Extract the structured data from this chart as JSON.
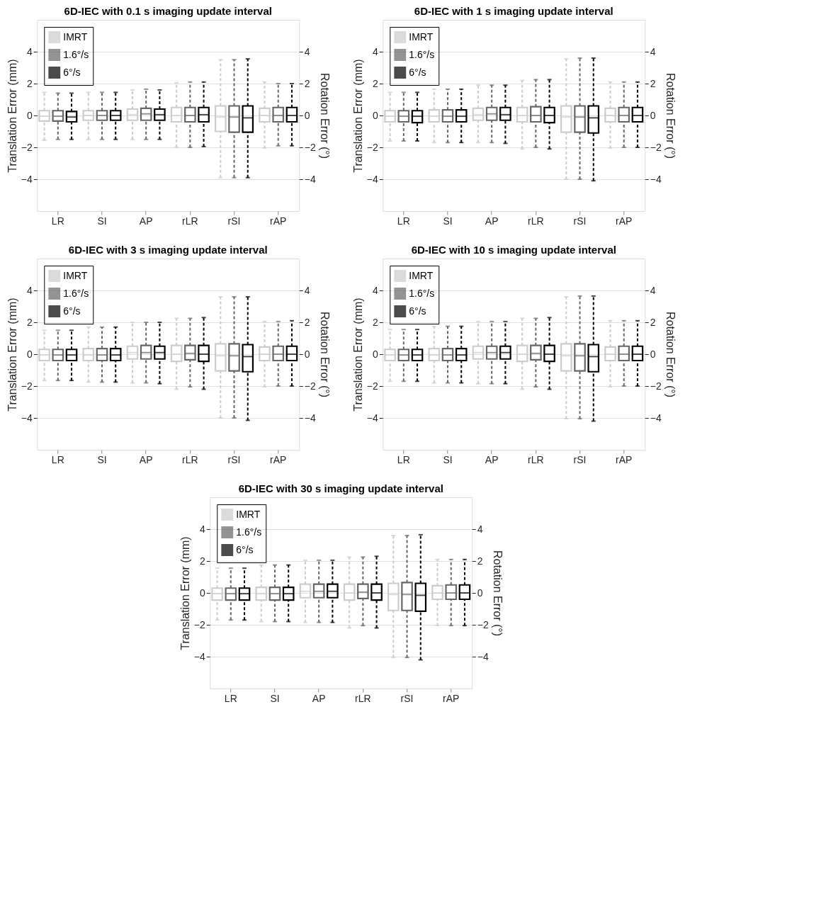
{
  "chart_data": [
    {
      "type": "box",
      "title": "6D-IEC with 0.1 s imaging update interval",
      "categories": [
        "LR",
        "SI",
        "AP",
        "rLR",
        "rSI",
        "rAP"
      ],
      "ylabel": "Translation Error (mm)",
      "y2label": "Rotation Error (°)",
      "ylim": [
        -6,
        6
      ],
      "yticks": [
        -4,
        -2,
        0,
        2,
        4
      ],
      "y2lim": [
        -6,
        6
      ],
      "y2ticks": [
        -4,
        -2,
        0,
        2,
        4
      ],
      "grid": "y",
      "legend": "top left",
      "line_style": "dashed",
      "series": [
        {
          "name": "IMRT",
          "color": "#cccccc",
          "boxes": [
            {
              "low": -1.55,
              "q1": -0.35,
              "median": -0.05,
              "q3": 0.3,
              "high": 1.45
            },
            {
              "low": -1.5,
              "q1": -0.3,
              "median": 0,
              "q3": 0.3,
              "high": 1.45
            },
            {
              "low": -1.5,
              "q1": -0.3,
              "median": 0.05,
              "q3": 0.4,
              "high": 1.6
            },
            {
              "low": -2.0,
              "q1": -0.4,
              "median": 0,
              "q3": 0.5,
              "high": 2.05
            },
            {
              "low": -3.9,
              "q1": -1.0,
              "median": -0.1,
              "q3": 0.6,
              "high": 3.5
            },
            {
              "low": -2.05,
              "q1": -0.4,
              "median": 0,
              "q3": 0.45,
              "high": 2.1
            }
          ]
        },
        {
          "name": "1.6°/s",
          "color": "#666666",
          "boxes": [
            {
              "low": -1.5,
              "q1": -0.35,
              "median": -0.05,
              "q3": 0.3,
              "high": 1.4
            },
            {
              "low": -1.5,
              "q1": -0.3,
              "median": 0,
              "q3": 0.3,
              "high": 1.45
            },
            {
              "low": -1.5,
              "q1": -0.3,
              "median": 0.1,
              "q3": 0.45,
              "high": 1.65
            },
            {
              "low": -2.0,
              "q1": -0.4,
              "median": 0,
              "q3": 0.5,
              "high": 2.1
            },
            {
              "low": -3.9,
              "q1": -1.05,
              "median": -0.1,
              "q3": 0.6,
              "high": 3.5
            },
            {
              "low": -1.9,
              "q1": -0.4,
              "median": 0,
              "q3": 0.5,
              "high": 2.0
            }
          ]
        },
        {
          "name": "6°/s",
          "color": "#000000",
          "boxes": [
            {
              "low": -1.5,
              "q1": -0.4,
              "median": -0.1,
              "q3": 0.25,
              "high": 1.4
            },
            {
              "low": -1.5,
              "q1": -0.3,
              "median": 0,
              "q3": 0.3,
              "high": 1.45
            },
            {
              "low": -1.5,
              "q1": -0.3,
              "median": 0.05,
              "q3": 0.4,
              "high": 1.6
            },
            {
              "low": -1.95,
              "q1": -0.4,
              "median": 0.05,
              "q3": 0.5,
              "high": 2.1
            },
            {
              "low": -3.9,
              "q1": -1.05,
              "median": -0.15,
              "q3": 0.6,
              "high": 3.55
            },
            {
              "low": -1.9,
              "q1": -0.4,
              "median": 0,
              "q3": 0.5,
              "high": 2.0
            }
          ]
        }
      ]
    },
    {
      "type": "box",
      "title": "6D-IEC with 1 s imaging update interval",
      "categories": [
        "LR",
        "SI",
        "AP",
        "rLR",
        "rSI",
        "rAP"
      ],
      "ylabel": "Translation Error (mm)",
      "y2label": "Rotation Error (°)",
      "ylim": [
        -6,
        6
      ],
      "yticks": [
        -4,
        -2,
        0,
        2,
        4
      ],
      "y2lim": [
        -6,
        6
      ],
      "y2ticks": [
        -4,
        -2,
        0,
        2,
        4
      ],
      "grid": "y",
      "legend": "top left",
      "line_style": "dashed",
      "series": [
        {
          "name": "IMRT",
          "color": "#cccccc",
          "boxes": [
            {
              "low": -1.6,
              "q1": -0.4,
              "median": -0.05,
              "q3": 0.3,
              "high": 1.45
            },
            {
              "low": -1.7,
              "q1": -0.4,
              "median": -0.05,
              "q3": 0.35,
              "high": 1.65
            },
            {
              "low": -1.7,
              "q1": -0.3,
              "median": 0.05,
              "q3": 0.45,
              "high": 1.9
            },
            {
              "low": -2.1,
              "q1": -0.4,
              "median": 0,
              "q3": 0.5,
              "high": 2.2
            },
            {
              "low": -4.0,
              "q1": -1.05,
              "median": -0.1,
              "q3": 0.6,
              "high": 3.55
            },
            {
              "low": -2.05,
              "q1": -0.4,
              "median": 0,
              "q3": 0.45,
              "high": 2.1
            }
          ]
        },
        {
          "name": "1.6°/s",
          "color": "#666666",
          "boxes": [
            {
              "low": -1.6,
              "q1": -0.4,
              "median": -0.05,
              "q3": 0.3,
              "high": 1.45
            },
            {
              "low": -1.7,
              "q1": -0.4,
              "median": -0.05,
              "q3": 0.35,
              "high": 1.65
            },
            {
              "low": -1.7,
              "q1": -0.3,
              "median": 0.1,
              "q3": 0.5,
              "high": 1.9
            },
            {
              "low": -2.0,
              "q1": -0.4,
              "median": 0,
              "q3": 0.55,
              "high": 2.25
            },
            {
              "low": -4.0,
              "q1": -1.05,
              "median": -0.1,
              "q3": 0.6,
              "high": 3.6
            },
            {
              "low": -2.0,
              "q1": -0.4,
              "median": 0,
              "q3": 0.5,
              "high": 2.1
            }
          ]
        },
        {
          "name": "6°/s",
          "color": "#000000",
          "boxes": [
            {
              "low": -1.6,
              "q1": -0.45,
              "median": -0.05,
              "q3": 0.3,
              "high": 1.45
            },
            {
              "low": -1.7,
              "q1": -0.4,
              "median": -0.05,
              "q3": 0.35,
              "high": 1.65
            },
            {
              "low": -1.75,
              "q1": -0.3,
              "median": 0.05,
              "q3": 0.5,
              "high": 1.9
            },
            {
              "low": -2.1,
              "q1": -0.45,
              "median": 0,
              "q3": 0.5,
              "high": 2.25
            },
            {
              "low": -4.1,
              "q1": -1.1,
              "median": -0.15,
              "q3": 0.6,
              "high": 3.6
            },
            {
              "low": -2.0,
              "q1": -0.4,
              "median": 0,
              "q3": 0.5,
              "high": 2.1
            }
          ]
        }
      ]
    },
    {
      "type": "box",
      "title": "6D-IEC with 3 s imaging update interval",
      "categories": [
        "LR",
        "SI",
        "AP",
        "rLR",
        "rSI",
        "rAP"
      ],
      "ylabel": "Translation Error (mm)",
      "y2label": "Rotation Error (°)",
      "ylim": [
        -6,
        6
      ],
      "yticks": [
        -4,
        -2,
        0,
        2,
        4
      ],
      "y2lim": [
        -6,
        6
      ],
      "y2ticks": [
        -4,
        -2,
        0,
        2,
        4
      ],
      "grid": "y",
      "legend": "top left",
      "line_style": "dashed",
      "series": [
        {
          "name": "IMRT",
          "color": "#cccccc",
          "boxes": [
            {
              "low": -1.65,
              "q1": -0.4,
              "median": -0.05,
              "q3": 0.3,
              "high": 1.5
            },
            {
              "low": -1.75,
              "q1": -0.4,
              "median": -0.05,
              "q3": 0.35,
              "high": 1.7
            },
            {
              "low": -1.8,
              "q1": -0.3,
              "median": 0.1,
              "q3": 0.5,
              "high": 2.0
            },
            {
              "low": -2.2,
              "q1": -0.45,
              "median": 0,
              "q3": 0.55,
              "high": 2.25
            },
            {
              "low": -4.0,
              "q1": -1.05,
              "median": -0.1,
              "q3": 0.65,
              "high": 3.6
            },
            {
              "low": -2.05,
              "q1": -0.4,
              "median": 0,
              "q3": 0.45,
              "high": 2.05
            }
          ]
        },
        {
          "name": "1.6°/s",
          "color": "#666666",
          "boxes": [
            {
              "low": -1.65,
              "q1": -0.4,
              "median": -0.05,
              "q3": 0.3,
              "high": 1.5
            },
            {
              "low": -1.75,
              "q1": -0.4,
              "median": -0.05,
              "q3": 0.35,
              "high": 1.7
            },
            {
              "low": -1.8,
              "q1": -0.3,
              "median": 0.1,
              "q3": 0.55,
              "high": 2.0
            },
            {
              "low": -2.05,
              "q1": -0.35,
              "median": 0.05,
              "q3": 0.55,
              "high": 2.25
            },
            {
              "low": -4.0,
              "q1": -1.05,
              "median": -0.1,
              "q3": 0.65,
              "high": 3.6
            },
            {
              "low": -2.0,
              "q1": -0.4,
              "median": 0,
              "q3": 0.5,
              "high": 2.05
            }
          ]
        },
        {
          "name": "6°/s",
          "color": "#000000",
          "boxes": [
            {
              "low": -1.65,
              "q1": -0.4,
              "median": -0.05,
              "q3": 0.3,
              "high": 1.5
            },
            {
              "low": -1.75,
              "q1": -0.4,
              "median": -0.05,
              "q3": 0.35,
              "high": 1.7
            },
            {
              "low": -1.85,
              "q1": -0.3,
              "median": 0.1,
              "q3": 0.5,
              "high": 2.0
            },
            {
              "low": -2.2,
              "q1": -0.45,
              "median": 0,
              "q3": 0.55,
              "high": 2.3
            },
            {
              "low": -4.15,
              "q1": -1.1,
              "median": -0.15,
              "q3": 0.6,
              "high": 3.6
            },
            {
              "low": -2.0,
              "q1": -0.4,
              "median": 0,
              "q3": 0.5,
              "high": 2.1
            }
          ]
        }
      ]
    },
    {
      "type": "box",
      "title": "6D-IEC with 10 s imaging update interval",
      "categories": [
        "LR",
        "SI",
        "AP",
        "rLR",
        "rSI",
        "rAP"
      ],
      "ylabel": "Translation Error (mm)",
      "y2label": "Rotation Error (°)",
      "ylim": [
        -6,
        6
      ],
      "yticks": [
        -4,
        -2,
        0,
        2,
        4
      ],
      "y2lim": [
        -6,
        6
      ],
      "y2ticks": [
        -4,
        -2,
        0,
        2,
        4
      ],
      "grid": "y",
      "legend": "top left",
      "line_style": "dashed",
      "series": [
        {
          "name": "IMRT",
          "color": "#cccccc",
          "boxes": [
            {
              "low": -1.7,
              "q1": -0.4,
              "median": -0.05,
              "q3": 0.3,
              "high": 1.55
            },
            {
              "low": -1.8,
              "q1": -0.4,
              "median": -0.05,
              "q3": 0.35,
              "high": 1.75
            },
            {
              "low": -1.85,
              "q1": -0.3,
              "median": 0.1,
              "q3": 0.5,
              "high": 2.05
            },
            {
              "low": -2.2,
              "q1": -0.45,
              "median": 0,
              "q3": 0.55,
              "high": 2.25
            },
            {
              "low": -4.05,
              "q1": -1.05,
              "median": -0.1,
              "q3": 0.65,
              "high": 3.6
            },
            {
              "low": -2.05,
              "q1": -0.4,
              "median": 0,
              "q3": 0.45,
              "high": 2.1
            }
          ]
        },
        {
          "name": "1.6°/s",
          "color": "#666666",
          "boxes": [
            {
              "low": -1.7,
              "q1": -0.4,
              "median": -0.05,
              "q3": 0.3,
              "high": 1.55
            },
            {
              "low": -1.8,
              "q1": -0.4,
              "median": -0.05,
              "q3": 0.35,
              "high": 1.75
            },
            {
              "low": -1.85,
              "q1": -0.3,
              "median": 0.1,
              "q3": 0.5,
              "high": 2.05
            },
            {
              "low": -2.05,
              "q1": -0.35,
              "median": 0.05,
              "q3": 0.55,
              "high": 2.25
            },
            {
              "low": -4.05,
              "q1": -1.05,
              "median": -0.1,
              "q3": 0.65,
              "high": 3.65
            },
            {
              "low": -2.0,
              "q1": -0.4,
              "median": 0,
              "q3": 0.5,
              "high": 2.1
            }
          ]
        },
        {
          "name": "6°/s",
          "color": "#000000",
          "boxes": [
            {
              "low": -1.7,
              "q1": -0.4,
              "median": -0.05,
              "q3": 0.3,
              "high": 1.55
            },
            {
              "low": -1.8,
              "q1": -0.4,
              "median": -0.05,
              "q3": 0.35,
              "high": 1.75
            },
            {
              "low": -1.85,
              "q1": -0.3,
              "median": 0.1,
              "q3": 0.5,
              "high": 2.05
            },
            {
              "low": -2.2,
              "q1": -0.45,
              "median": 0,
              "q3": 0.55,
              "high": 2.3
            },
            {
              "low": -4.2,
              "q1": -1.1,
              "median": -0.15,
              "q3": 0.6,
              "high": 3.65
            },
            {
              "low": -2.0,
              "q1": -0.4,
              "median": 0,
              "q3": 0.5,
              "high": 2.1
            }
          ]
        }
      ]
    },
    {
      "type": "box",
      "title": "6D-IEC with 30 s imaging update interval",
      "categories": [
        "LR",
        "SI",
        "AP",
        "rLR",
        "rSI",
        "rAP"
      ],
      "ylabel": "Translation Error (mm)",
      "y2label": "Rotation Error (°)",
      "ylim": [
        -6,
        6
      ],
      "yticks": [
        -4,
        -2,
        0,
        2,
        4
      ],
      "y2lim": [
        -6,
        6
      ],
      "y2ticks": [
        -4,
        -2,
        0,
        2,
        4
      ],
      "grid": "y",
      "legend": "top left",
      "line_style": "dashed",
      "series": [
        {
          "name": "IMRT",
          "color": "#cccccc",
          "boxes": [
            {
              "low": -1.7,
              "q1": -0.45,
              "median": -0.05,
              "q3": 0.3,
              "high": 1.55
            },
            {
              "low": -1.8,
              "q1": -0.45,
              "median": -0.05,
              "q3": 0.35,
              "high": 1.75
            },
            {
              "low": -1.85,
              "q1": -0.3,
              "median": 0.1,
              "q3": 0.55,
              "high": 2.05
            },
            {
              "low": -2.2,
              "q1": -0.45,
              "median": 0,
              "q3": 0.55,
              "high": 2.25
            },
            {
              "low": -4.05,
              "q1": -1.1,
              "median": -0.1,
              "q3": 0.6,
              "high": 3.6
            },
            {
              "low": -2.05,
              "q1": -0.4,
              "median": 0,
              "q3": 0.45,
              "high": 2.1
            }
          ]
        },
        {
          "name": "1.6°/s",
          "color": "#666666",
          "boxes": [
            {
              "low": -1.7,
              "q1": -0.45,
              "median": -0.05,
              "q3": 0.3,
              "high": 1.55
            },
            {
              "low": -1.8,
              "q1": -0.45,
              "median": -0.05,
              "q3": 0.35,
              "high": 1.75
            },
            {
              "low": -1.85,
              "q1": -0.3,
              "median": 0.1,
              "q3": 0.55,
              "high": 2.05
            },
            {
              "low": -2.05,
              "q1": -0.35,
              "median": 0.05,
              "q3": 0.55,
              "high": 2.25
            },
            {
              "low": -4.05,
              "q1": -1.1,
              "median": -0.1,
              "q3": 0.65,
              "high": 3.6
            },
            {
              "low": -2.05,
              "q1": -0.4,
              "median": 0,
              "q3": 0.5,
              "high": 2.1
            }
          ]
        },
        {
          "name": "6°/s",
          "color": "#000000",
          "boxes": [
            {
              "low": -1.7,
              "q1": -0.45,
              "median": -0.05,
              "q3": 0.3,
              "high": 1.55
            },
            {
              "low": -1.8,
              "q1": -0.45,
              "median": -0.05,
              "q3": 0.35,
              "high": 1.75
            },
            {
              "low": -1.85,
              "q1": -0.3,
              "median": 0.1,
              "q3": 0.55,
              "high": 2.05
            },
            {
              "low": -2.2,
              "q1": -0.45,
              "median": 0,
              "q3": 0.55,
              "high": 2.3
            },
            {
              "low": -4.2,
              "q1": -1.15,
              "median": -0.15,
              "q3": 0.6,
              "high": 3.65
            },
            {
              "low": -2.05,
              "q1": -0.4,
              "median": 0,
              "q3": 0.5,
              "high": 2.1
            }
          ]
        }
      ]
    }
  ]
}
